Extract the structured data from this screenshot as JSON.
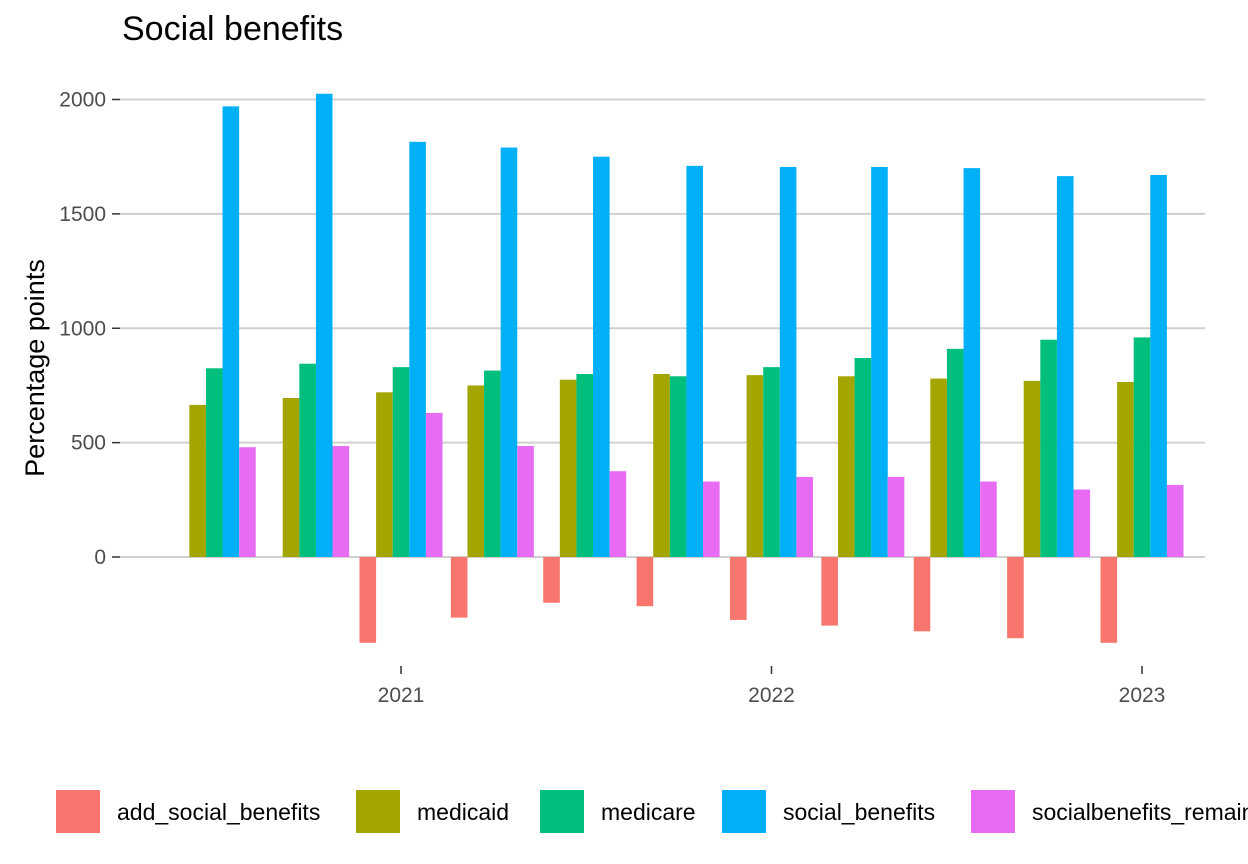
{
  "chart_data": {
    "type": "bar",
    "title": "Social benefits",
    "xlabel": "",
    "ylabel": "Percentage points",
    "ylim": [
      -430,
      2080
    ],
    "y_ticks": [
      0,
      500,
      1000,
      1500,
      2000
    ],
    "x_ticks": [
      "2021",
      "2022",
      "2023"
    ],
    "x_tick_dates": [
      "2021-01-01",
      "2022-01-01",
      "2023-01-01"
    ],
    "periods": [
      "2020-07",
      "2020-10",
      "2021-01",
      "2021-04",
      "2021-07",
      "2021-10",
      "2022-01",
      "2022-04",
      "2022-07",
      "2022-10",
      "2023-01"
    ],
    "grid": true,
    "legend_position": "bottom",
    "series": [
      {
        "name": "add_social_benefits",
        "color": "#F8766D",
        "values": [
          0,
          0,
          -375,
          -265,
          -200,
          -215,
          -275,
          -300,
          -325,
          -355,
          -375
        ]
      },
      {
        "name": "medicaid",
        "color": "#A3A500",
        "values": [
          665,
          695,
          720,
          750,
          775,
          800,
          795,
          790,
          780,
          770,
          765
        ]
      },
      {
        "name": "medicare",
        "color": "#00BF7D",
        "values": [
          825,
          845,
          830,
          815,
          800,
          790,
          830,
          870,
          910,
          950,
          960
        ]
      },
      {
        "name": "social_benefits",
        "color": "#00B0F6",
        "values": [
          1970,
          2025,
          1815,
          1790,
          1750,
          1710,
          1705,
          1705,
          1700,
          1665,
          1670
        ]
      },
      {
        "name": "socialbenefits_remaining",
        "color": "#E76BF3",
        "values": [
          480,
          485,
          630,
          485,
          375,
          330,
          350,
          350,
          330,
          295,
          315
        ]
      }
    ]
  }
}
